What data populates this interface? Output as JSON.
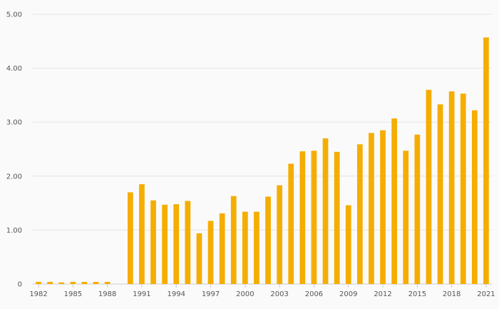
{
  "chart_data": {
    "type": "bar",
    "title": "",
    "xlabel": "",
    "ylabel": "",
    "color": "#f5ad00",
    "grid": true,
    "ylim": [
      0,
      5
    ],
    "yticks": [
      0,
      1,
      2,
      3,
      4,
      5
    ],
    "ytick_labels": [
      "0",
      "1.00",
      "2.00",
      "3.00",
      "4.00",
      "5.00"
    ],
    "xtick_labels": [
      "1982",
      "1985",
      "1988",
      "1991",
      "1994",
      "1997",
      "2000",
      "2003",
      "2006",
      "2009",
      "2012",
      "2015",
      "2018",
      "2021"
    ],
    "categories": [
      "1982",
      "1983",
      "1984",
      "1985",
      "1986",
      "1987",
      "1988",
      "1989",
      "1990",
      "1991",
      "1992",
      "1993",
      "1994",
      "1995",
      "1996",
      "1997",
      "1998",
      "1999",
      "2000",
      "2001",
      "2002",
      "2003",
      "2004",
      "2005",
      "2006",
      "2007",
      "2008",
      "2009",
      "2010",
      "2011",
      "2012",
      "2013",
      "2014",
      "2015",
      "2016",
      "2017",
      "2018",
      "2019",
      "2020",
      "2021"
    ],
    "values": [
      0.04,
      0.04,
      0.03,
      0.04,
      0.04,
      0.04,
      0.04,
      0,
      1.7,
      1.85,
      1.55,
      1.47,
      1.48,
      1.54,
      0.94,
      1.17,
      1.31,
      1.63,
      1.34,
      1.34,
      1.62,
      1.83,
      2.23,
      2.46,
      2.47,
      2.7,
      2.45,
      1.46,
      2.59,
      2.8,
      2.85,
      3.07,
      2.47,
      2.77,
      3.6,
      3.33,
      3.57,
      3.53,
      3.22,
      4.57
    ]
  }
}
